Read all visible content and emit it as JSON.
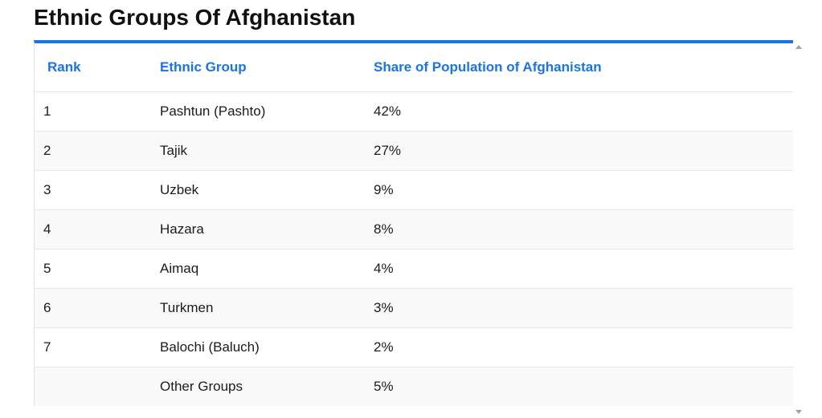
{
  "page": {
    "title": "Ethnic Groups Of Afghanistan"
  },
  "table": {
    "headers": [
      "Rank",
      "Ethnic Group",
      "Share of Population of Afghanistan"
    ],
    "rows": [
      [
        "1",
        "Pashtun (Pashto)",
        "42%"
      ],
      [
        "2",
        "Tajik",
        "27%"
      ],
      [
        "3",
        "Uzbek",
        "9%"
      ],
      [
        "4",
        "Hazara",
        "8%"
      ],
      [
        "5",
        "Aimaq",
        "4%"
      ],
      [
        "6",
        "Turkmen",
        "3%"
      ],
      [
        "7",
        "Balochi (Baluch)",
        "2%"
      ],
      [
        "",
        "Other Groups",
        "5%"
      ]
    ]
  },
  "colors": {
    "accent": "#1a73e8",
    "row_stripe": "#f9f9f9"
  },
  "icons": [
    "scroll-up-arrow-icon",
    "scroll-down-arrow-icon"
  ]
}
